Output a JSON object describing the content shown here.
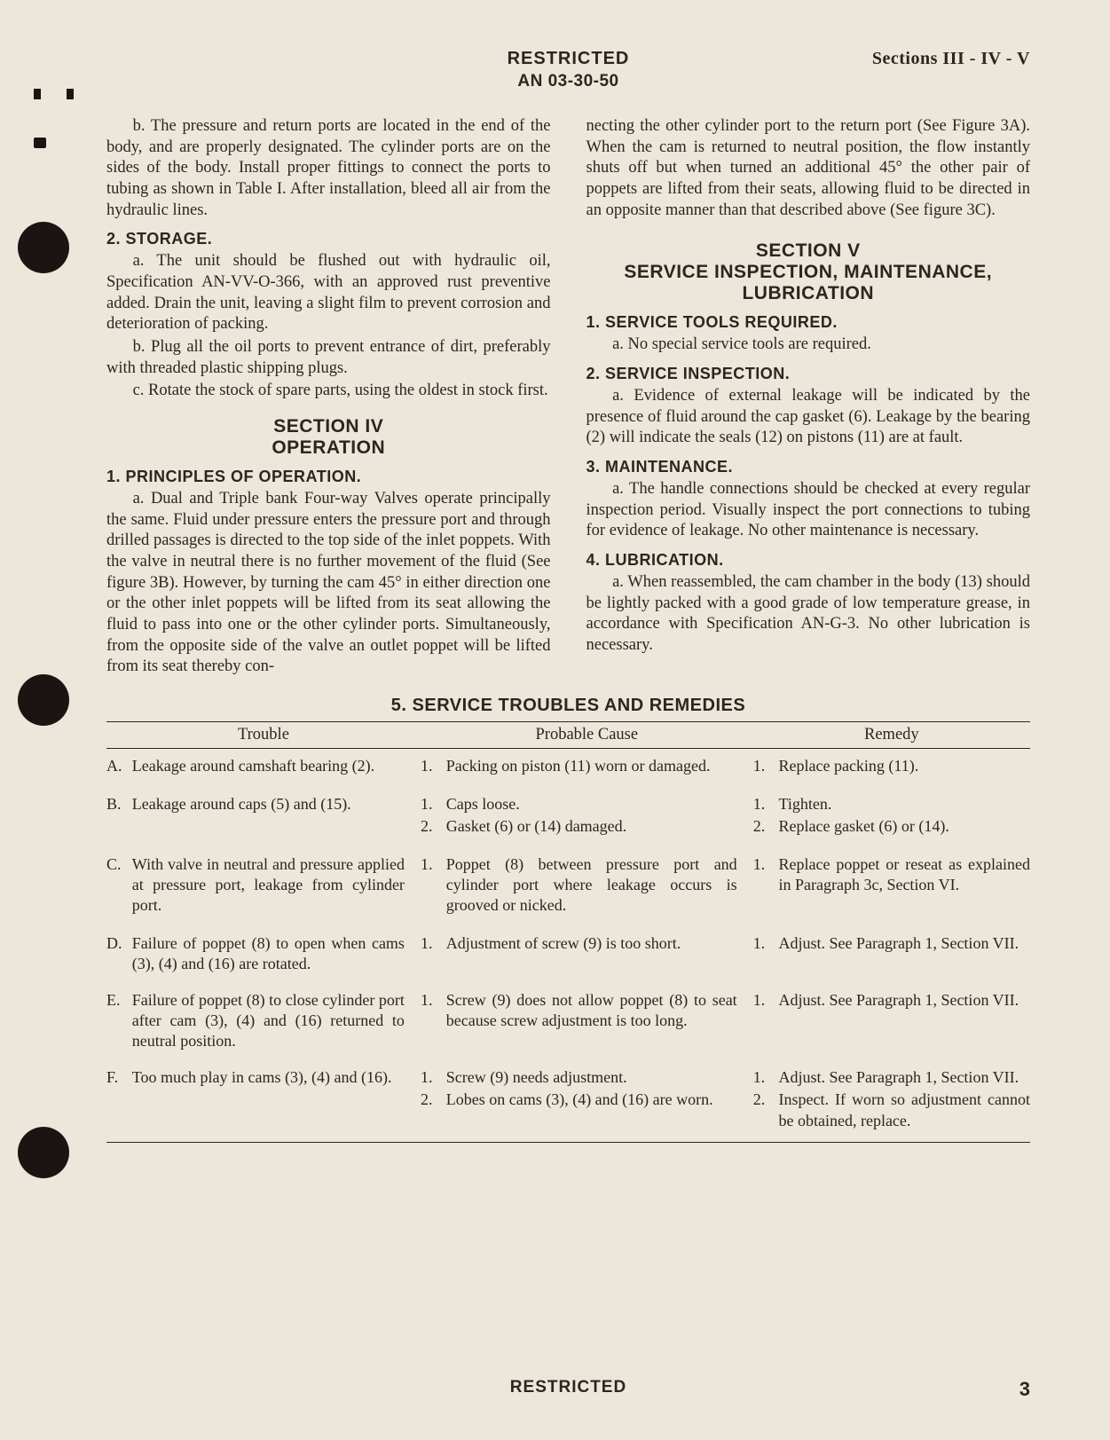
{
  "colors": {
    "page_bg": "#ece7da",
    "text": "#2a2620",
    "punch": "#1a1512",
    "rule": "#2a2620"
  },
  "typography": {
    "body_family": "Garamond, 'Times New Roman', serif",
    "heading_family": "Arial, Helvetica, sans-serif",
    "body_size_pt": 18.5,
    "heading_size_pt": 21,
    "subhead_size_pt": 18,
    "line_height": 1.28
  },
  "header": {
    "restricted": "RESTRICTED",
    "doc_no": "AN 03-30-50",
    "sections_label": "Sections III - IV - V"
  },
  "left": {
    "p_b": "b. The pressure and return ports are located in the end of the body, and are properly designated. The cylinder ports are on the sides of the body. Install proper fittings to connect the ports to tubing as shown in Table I. After installation, bleed all air from the hydraulic lines.",
    "h_storage": "2. STORAGE.",
    "p_2a": "a. The unit should be flushed out with hydraulic oil, Specification AN-VV-O-366, with an approved rust preventive added. Drain the unit, leaving a slight film to prevent corrosion and deterioration of packing.",
    "p_2b": "b. Plug all the oil ports to prevent entrance of dirt, preferably with threaded plastic shipping plugs.",
    "p_2c": "c. Rotate the stock of spare parts, using the oldest in stock first.",
    "sec_iv": "SECTION IV",
    "sec_iv_sub": "OPERATION",
    "h_principles": "1. PRINCIPLES OF OPERATION.",
    "p_1a": "a. Dual and Triple bank Four-way Valves operate principally the same. Fluid under pressure enters the pressure port and through drilled passages is directed to the top side of the inlet poppets. With the valve in neutral there is no further movement of the fluid (See figure 3B). However, by turning the cam 45° in either direction one or the other inlet poppets will be lifted from its seat allowing the fluid to pass into one or the other cylinder ports. Simultaneously, from the opposite side of the valve an outlet poppet will be lifted from its seat thereby con-"
  },
  "right": {
    "p_cont": "necting the other cylinder port to the return port (See Figure 3A). When the cam is returned to neutral position, the flow instantly shuts off but when turned an additional 45° the other pair of poppets are lifted from their seats, allowing fluid to be directed in an opposite manner than that described above (See figure 3C).",
    "sec_v": "SECTION V",
    "sec_v_sub": "SERVICE INSPECTION, MAINTENANCE, LUBRICATION",
    "h_tools": "1. SERVICE TOOLS REQUIRED.",
    "p_tools_a": "a. No special service tools are required.",
    "h_insp": "2. SERVICE INSPECTION.",
    "p_insp_a": "a. Evidence of external leakage will be indicated by the presence of fluid around the cap gasket (6). Leakage by the bearing (2) will indicate the seals (12) on pistons (11) are at fault.",
    "h_maint": "3. MAINTENANCE.",
    "p_maint_a": "a. The handle connections should be checked at every regular inspection period. Visually inspect the port connections to tubing for evidence of leakage. No other maintenance is necessary.",
    "h_lub": "4. LUBRICATION.",
    "p_lub_a": "a. When reassembled, the cam chamber in the body (13) should be lightly packed with a good grade of low temperature grease, in accordance with Specification AN-G-3. No other lubrication is necessary."
  },
  "table": {
    "title": "5. SERVICE TROUBLES AND REMEDIES",
    "columns": [
      "Trouble",
      "Probable Cause",
      "Remedy"
    ],
    "col_widths_pct": [
      34,
      36,
      30
    ],
    "rows": [
      {
        "mk": "A.",
        "trouble": "Leakage around camshaft bearing (2).",
        "causes": [
          {
            "n": "1.",
            "t": "Packing on piston (11) worn or damaged."
          }
        ],
        "remedies": [
          {
            "n": "1.",
            "t": "Replace packing (11)."
          }
        ]
      },
      {
        "mk": "B.",
        "trouble": "Leakage around caps (5) and (15).",
        "causes": [
          {
            "n": "1.",
            "t": "Caps loose."
          },
          {
            "n": "2.",
            "t": "Gasket (6) or (14) damaged."
          }
        ],
        "remedies": [
          {
            "n": "1.",
            "t": "Tighten."
          },
          {
            "n": "2.",
            "t": "Replace gasket (6) or (14)."
          }
        ]
      },
      {
        "mk": "C.",
        "trouble": "With valve in neutral and pressure applied at pressure port, leakage from cylinder port.",
        "causes": [
          {
            "n": "1.",
            "t": "Poppet (8) between pressure port and cylinder port where leakage occurs is grooved or nicked."
          }
        ],
        "remedies": [
          {
            "n": "1.",
            "t": "Replace poppet or reseat as explained in Paragraph 3c, Section VI."
          }
        ]
      },
      {
        "mk": "D.",
        "trouble": "Failure of poppet (8) to open when cams (3), (4) and (16) are rotated.",
        "causes": [
          {
            "n": "1.",
            "t": "Adjustment of screw (9) is too short."
          }
        ],
        "remedies": [
          {
            "n": "1.",
            "t": "Adjust. See Paragraph 1, Section VII."
          }
        ]
      },
      {
        "mk": "E.",
        "trouble": "Failure of poppet (8) to close cylinder port after cam (3), (4) and (16) returned to neutral position.",
        "causes": [
          {
            "n": "1.",
            "t": "Screw (9) does not allow poppet (8) to seat because screw adjustment is too long."
          }
        ],
        "remedies": [
          {
            "n": "1.",
            "t": "Adjust. See Paragraph 1, Section VII."
          }
        ]
      },
      {
        "mk": "F.",
        "trouble": "Too much play in cams (3), (4) and (16).",
        "causes": [
          {
            "n": "1.",
            "t": "Screw (9) needs adjustment."
          },
          {
            "n": "2.",
            "t": "Lobes on cams (3), (4) and (16) are worn."
          }
        ],
        "remedies": [
          {
            "n": "1.",
            "t": "Adjust. See Paragraph 1, Section VII."
          },
          {
            "n": "2.",
            "t": "Inspect. If worn so adjustment cannot be obtained, replace."
          }
        ]
      }
    ]
  },
  "footer": {
    "restricted": "RESTRICTED",
    "page_no": "3"
  }
}
